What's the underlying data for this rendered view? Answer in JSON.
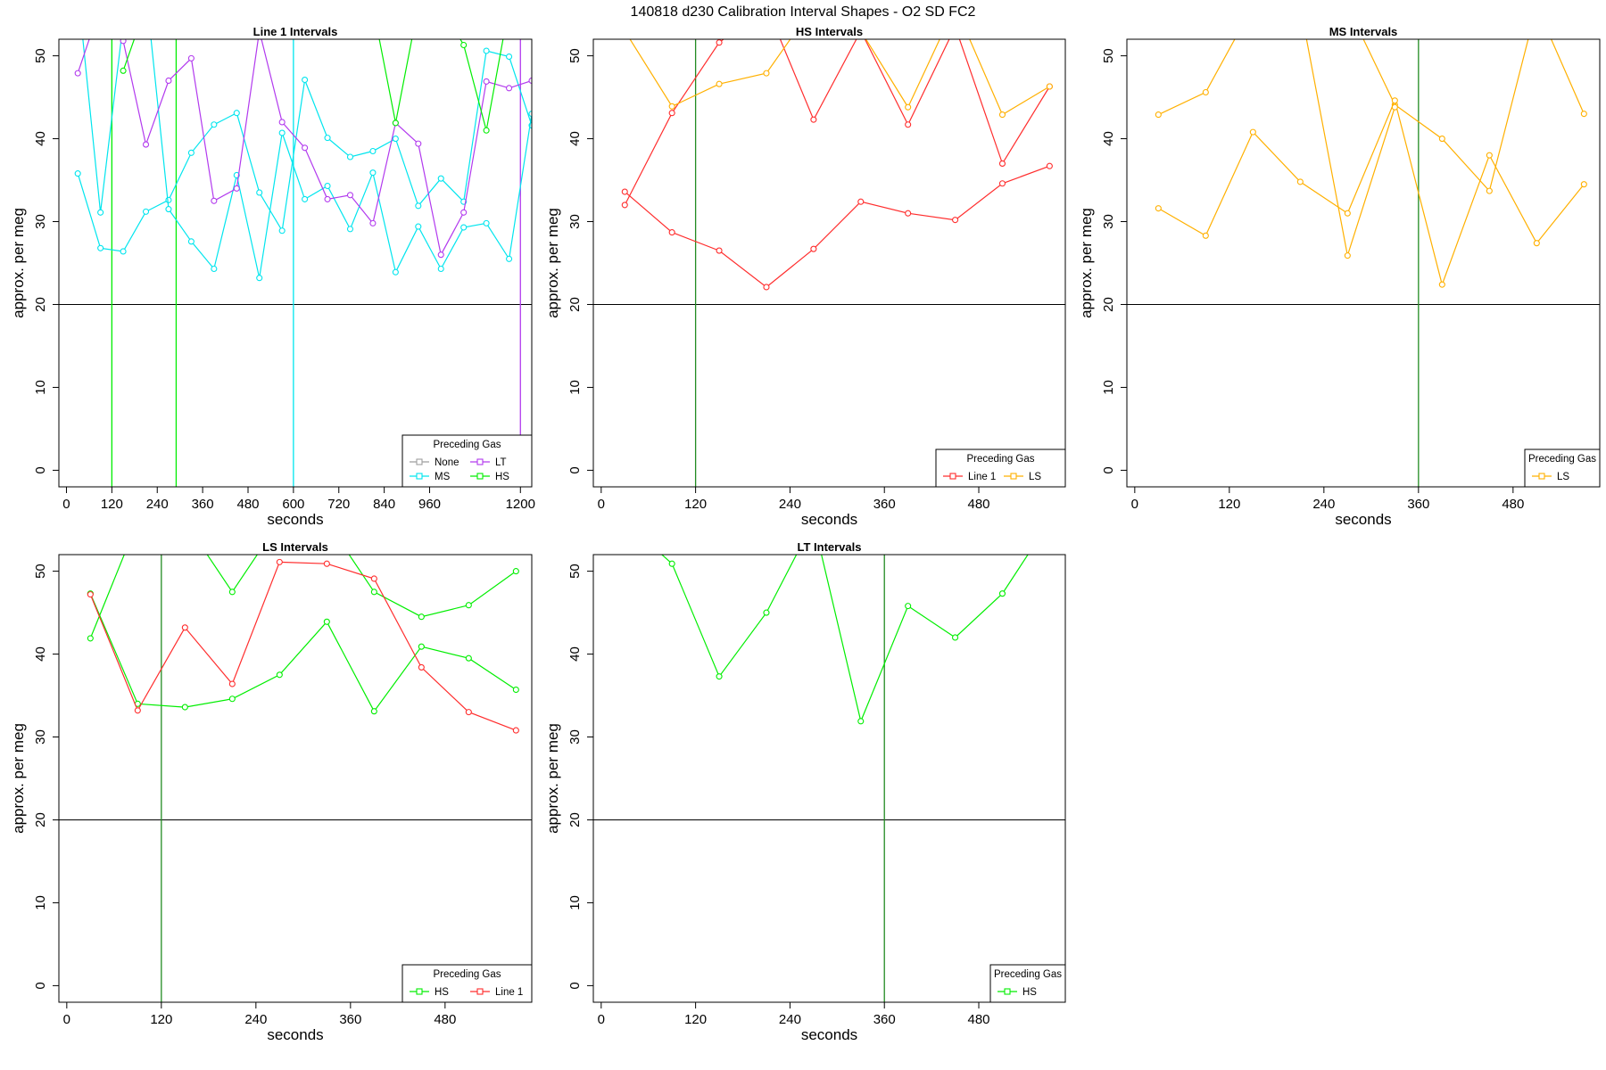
{
  "figure": {
    "title": "140818   d230   Calibration Interval Shapes - O2 SD FC2"
  },
  "colors": {
    "none": "#9e9e9e",
    "ms": "#00e5ee",
    "lt": "#b23aee",
    "hs": "#00ee00",
    "line1": "#ff2d2d",
    "ls": "#ffb000",
    "vline": "#228b22",
    "hline": "#000000"
  },
  "chart_data": [
    {
      "type": "line",
      "title": "Line 1 Intervals",
      "xlabel": "seconds",
      "ylabel": "approx. per meg",
      "xlim": [
        -20,
        1230
      ],
      "ylim": [
        -2,
        52
      ],
      "xticks": [
        0,
        120,
        240,
        360,
        480,
        600,
        720,
        840,
        960,
        1200
      ],
      "yticks": [
        0,
        10,
        20,
        30,
        40,
        50
      ],
      "hlines": [
        20
      ],
      "vlines": [
        {
          "x": 120,
          "color_key": "hs"
        },
        {
          "x": 290,
          "color_key": "hs"
        },
        {
          "x": 600,
          "color_key": "ms"
        },
        {
          "x": 1200,
          "color_key": "lt"
        }
      ],
      "legend": {
        "title": "Preceding Gas",
        "position": "bottom-right",
        "entries": [
          {
            "label": "None",
            "color_key": "none"
          },
          {
            "label": "LT",
            "color_key": "lt"
          },
          {
            "label": "MS",
            "color_key": "ms"
          },
          {
            "label": "HS",
            "color_key": "hs"
          }
        ]
      },
      "series": [
        {
          "name": "MS",
          "color_key": "ms",
          "x": [
            30,
            90,
            150,
            210,
            270,
            330,
            390,
            450,
            510,
            570,
            630,
            690,
            750,
            810,
            870,
            930,
            990,
            1050,
            1110,
            1170,
            1230
          ],
          "y": [
            35.8,
            26.8,
            26.4,
            31.2,
            32.6,
            38.3,
            41.7,
            43.1,
            33.5,
            28.9,
            47.1,
            40.1,
            37.8,
            38.5,
            40.0,
            31.9,
            35.2,
            32.4,
            50.6,
            49.9,
            41.6
          ]
        },
        {
          "name": "MS",
          "color_key": "ms",
          "x": [
            30,
            90,
            150,
            210,
            270,
            330,
            390,
            450,
            510,
            570,
            630,
            690,
            750,
            810,
            870,
            930,
            990,
            1050,
            1110,
            1170,
            1230
          ],
          "y": [
            58,
            31.1,
            54,
            58,
            31.5,
            27.6,
            24.3,
            35.6,
            23.2,
            40.7,
            32.7,
            34.3,
            29.1,
            35.9,
            23.9,
            29.4,
            24.3,
            29.3,
            29.8,
            25.5,
            43.0
          ]
        },
        {
          "name": "LT",
          "color_key": "lt",
          "x": [
            30,
            90,
            150,
            210,
            270,
            330,
            390,
            450,
            510,
            570,
            630,
            690,
            750,
            810,
            870,
            930,
            990,
            1050,
            1110,
            1170,
            1230
          ],
          "y": [
            47.9,
            56,
            51.8,
            39.3,
            47.0,
            49.7,
            32.5,
            34.0,
            53.0,
            42.0,
            38.9,
            32.7,
            33.2,
            29.8,
            41.9,
            39.4,
            26.0,
            31.1,
            46.9,
            46.1,
            47.0
          ]
        },
        {
          "name": "HS",
          "color_key": "hs",
          "x": [
            150,
            210,
            270,
            330,
            390,
            450,
            510,
            570,
            630,
            690,
            750,
            810,
            870,
            930,
            990,
            1050,
            1110,
            1170
          ],
          "y": [
            48.2,
            56,
            56,
            56,
            56,
            56,
            56,
            56,
            56,
            56,
            56,
            56,
            41.9,
            56,
            56,
            51.3,
            41.0,
            56
          ]
        }
      ]
    },
    {
      "type": "line",
      "title": "HS Intervals",
      "xlabel": "seconds",
      "ylabel": "approx. per meg",
      "xlim": [
        -10,
        590
      ],
      "ylim": [
        -2,
        52
      ],
      "xticks": [
        0,
        120,
        240,
        360,
        480
      ],
      "yticks": [
        0,
        10,
        20,
        30,
        40,
        50
      ],
      "hlines": [
        20
      ],
      "vlines": [
        {
          "x": 120,
          "color_key": "vline"
        }
      ],
      "legend": {
        "title": "Preceding Gas",
        "position": "bottom-right",
        "entries": [
          {
            "label": "Line 1",
            "color_key": "line1"
          },
          {
            "label": "LS",
            "color_key": "ls"
          }
        ]
      },
      "series": [
        {
          "name": "Line 1",
          "color_key": "line1",
          "x": [
            30,
            90,
            150,
            210,
            270,
            330,
            390,
            450,
            510,
            570
          ],
          "y": [
            33.6,
            28.7,
            26.5,
            22.1,
            26.7,
            32.4,
            31.0,
            30.2,
            34.6,
            36.7
          ]
        },
        {
          "name": "Line 1",
          "color_key": "line1",
          "x": [
            30,
            90,
            150,
            210,
            270,
            330,
            390,
            450,
            510,
            570
          ],
          "y": [
            32.0,
            43.1,
            51.6,
            56,
            42.3,
            53.0,
            41.7,
            53.5,
            37.0,
            46.3
          ]
        },
        {
          "name": "LS",
          "color_key": "ls",
          "x": [
            30,
            90,
            150,
            210,
            270,
            330,
            390,
            450,
            510,
            570
          ],
          "y": [
            53.0,
            43.9,
            46.6,
            47.9,
            56,
            53.0,
            43.8,
            56,
            42.9,
            46.3
          ]
        }
      ]
    },
    {
      "type": "line",
      "title": "MS Intervals",
      "xlabel": "seconds",
      "ylabel": "approx. per meg",
      "xlim": [
        -10,
        590
      ],
      "ylim": [
        -2,
        52
      ],
      "xticks": [
        0,
        120,
        240,
        360,
        480
      ],
      "yticks": [
        0,
        10,
        20,
        30,
        40,
        50
      ],
      "hlines": [
        20
      ],
      "vlines": [
        {
          "x": 360,
          "color_key": "vline"
        }
      ],
      "legend": {
        "title": "Preceding Gas",
        "position": "bottom-right",
        "entries": [
          {
            "label": "LS",
            "color_key": "ls"
          }
        ]
      },
      "series": [
        {
          "name": "LS",
          "color_key": "ls",
          "x": [
            30,
            90,
            150,
            210,
            270,
            330,
            390,
            450,
            510,
            570
          ],
          "y": [
            42.9,
            45.6,
            56,
            56,
            56,
            44.1,
            40.0,
            33.7,
            56,
            43.0
          ]
        },
        {
          "name": "LS",
          "color_key": "ls",
          "x": [
            30,
            90,
            150,
            210,
            270,
            330,
            390,
            450,
            510,
            570
          ],
          "y": [
            31.6,
            28.3,
            40.8,
            34.8,
            31.0,
            44.6,
            22.4,
            38.0,
            27.4,
            34.5
          ]
        },
        {
          "name": "LS",
          "color_key": "ls",
          "x": [
            210,
            270,
            330
          ],
          "y": [
            56,
            25.9,
            43.8
          ]
        }
      ]
    },
    {
      "type": "line",
      "title": "LS Intervals",
      "xlabel": "seconds",
      "ylabel": "approx. per meg",
      "xlim": [
        -10,
        590
      ],
      "ylim": [
        -2,
        52
      ],
      "xticks": [
        0,
        120,
        240,
        360,
        480
      ],
      "yticks": [
        0,
        10,
        20,
        30,
        40,
        50
      ],
      "hlines": [
        20
      ],
      "vlines": [
        {
          "x": 120,
          "color_key": "vline"
        }
      ],
      "legend": {
        "title": "Preceding Gas",
        "position": "bottom-right",
        "entries": [
          {
            "label": "HS",
            "color_key": "hs"
          },
          {
            "label": "Line 1",
            "color_key": "line1"
          }
        ]
      },
      "series": [
        {
          "name": "HS",
          "color_key": "hs",
          "x": [
            30,
            90,
            150,
            210,
            270,
            330,
            390,
            450,
            510,
            570
          ],
          "y": [
            41.9,
            56,
            56,
            47.5,
            56,
            56,
            47.5,
            44.5,
            45.9,
            50.0
          ]
        },
        {
          "name": "HS",
          "color_key": "hs",
          "x": [
            30,
            90,
            150,
            210,
            270,
            330,
            390,
            450,
            510,
            570
          ],
          "y": [
            47.3,
            34.0,
            33.6,
            34.6,
            37.5,
            43.9,
            33.1,
            40.9,
            39.5,
            35.7
          ]
        },
        {
          "name": "Line 1",
          "color_key": "line1",
          "x": [
            30,
            90,
            150,
            210,
            270,
            330,
            390,
            450,
            510,
            570
          ],
          "y": [
            47.2,
            33.2,
            43.2,
            36.4,
            51.1,
            50.9,
            49.1,
            38.4,
            33.0,
            30.8
          ]
        }
      ]
    },
    {
      "type": "line",
      "title": "LT Intervals",
      "xlabel": "seconds",
      "ylabel": "approx. per meg",
      "xlim": [
        -10,
        590
      ],
      "ylim": [
        -2,
        52
      ],
      "xticks": [
        0,
        120,
        240,
        360,
        480
      ],
      "yticks": [
        0,
        10,
        20,
        30,
        40,
        50
      ],
      "hlines": [
        20
      ],
      "vlines": [
        {
          "x": 360,
          "color_key": "vline"
        }
      ],
      "legend": {
        "title": "Preceding Gas",
        "position": "bottom-right",
        "entries": [
          {
            "label": "HS",
            "color_key": "hs"
          }
        ]
      },
      "series": [
        {
          "name": "HS",
          "color_key": "hs",
          "x": [
            30,
            90,
            150,
            210,
            270,
            330,
            390,
            450,
            510,
            570
          ],
          "y": [
            56,
            50.9,
            37.3,
            45.0,
            56,
            31.9,
            45.8,
            42.0,
            47.3,
            56
          ]
        }
      ]
    }
  ]
}
